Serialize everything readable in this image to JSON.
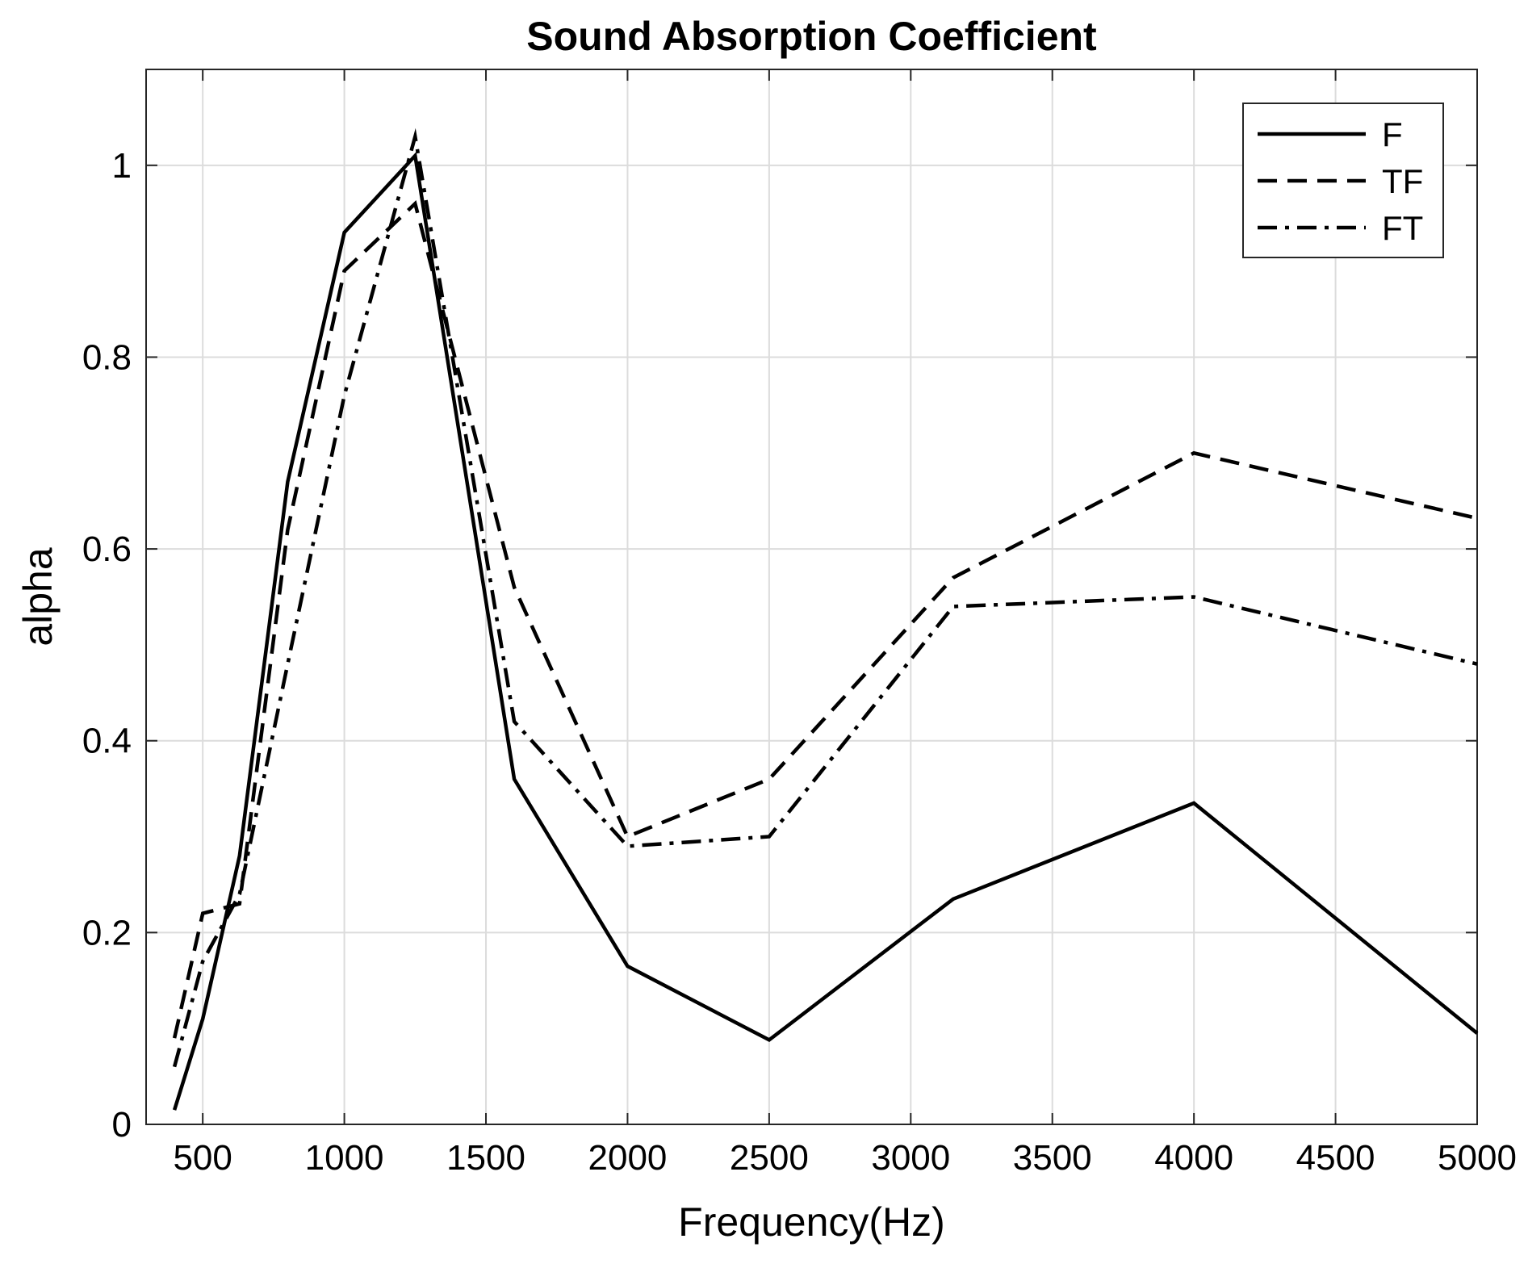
{
  "chart_data": {
    "type": "line",
    "title": "Sound Absorption Coefficient",
    "xlabel": "Frequency(Hz)",
    "ylabel": "alpha",
    "xlim": [
      300,
      5000
    ],
    "ylim": [
      0,
      1.1
    ],
    "grid": true,
    "legend_position": "top-right",
    "xticks": [
      500,
      1000,
      1500,
      2000,
      2500,
      3000,
      3500,
      4000,
      4500,
      5000
    ],
    "xtick_labels": [
      "500",
      "1000",
      "1500",
      "2000",
      "2500",
      "3000",
      "3500",
      "4000",
      "4500",
      "5000"
    ],
    "yticks": [
      0,
      0.2,
      0.4,
      0.6,
      0.8,
      1
    ],
    "ytick_labels": [
      "0",
      "0.2",
      "0.4",
      "0.6",
      "0.8",
      "1"
    ],
    "x": [
      400,
      500,
      630,
      800,
      1000,
      1250,
      1600,
      2000,
      2500,
      3150,
      4000,
      5000
    ],
    "series": [
      {
        "name": "F",
        "line_style": "solid",
        "color": "#000000",
        "values": [
          0.015,
          0.11,
          0.28,
          0.67,
          0.93,
          1.01,
          0.36,
          0.165,
          0.088,
          0.235,
          0.335,
          0.095
        ]
      },
      {
        "name": "TF",
        "line_style": "dashed",
        "color": "#000000",
        "values": [
          0.09,
          0.22,
          0.23,
          0.62,
          0.89,
          0.96,
          0.56,
          0.3,
          0.36,
          0.57,
          0.7,
          0.632
        ]
      },
      {
        "name": "FT",
        "line_style": "dash-dot",
        "color": "#000000",
        "values": [
          0.06,
          0.17,
          0.24,
          0.48,
          0.76,
          1.03,
          0.42,
          0.29,
          0.3,
          0.54,
          0.55,
          0.48
        ]
      }
    ]
  }
}
